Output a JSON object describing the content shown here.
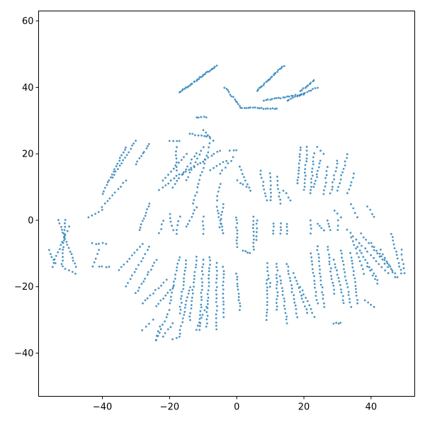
{
  "chart_data": {
    "type": "scatter",
    "title": "",
    "xlabel": "",
    "ylabel": "",
    "xlim": [
      -59,
      53
    ],
    "ylim": [
      -53,
      63
    ],
    "xticks": [
      -40,
      -20,
      0,
      20,
      40
    ],
    "yticks": [
      -40,
      -20,
      0,
      20,
      40,
      60
    ],
    "grid": false,
    "legend": "none",
    "marker_color": "#2b83ba",
    "segments": [
      {
        "from": [
          -17,
          38.5
        ],
        "to": [
          -6,
          46.5
        ],
        "n": 30
      },
      {
        "from": [
          6,
          39
        ],
        "to": [
          14,
          46.5
        ],
        "n": 22
      },
      {
        "from": [
          -3.5,
          40
        ],
        "to": [
          1,
          34.5
        ],
        "n": 12
      },
      {
        "from": [
          1,
          34
        ],
        "to": [
          12,
          33.5
        ],
        "n": 18
      },
      {
        "from": [
          8,
          36
        ],
        "to": [
          20,
          38
        ],
        "n": 20
      },
      {
        "from": [
          15,
          36
        ],
        "to": [
          24,
          40
        ],
        "n": 16
      },
      {
        "from": [
          19,
          39
        ],
        "to": [
          23,
          42
        ],
        "n": 10
      },
      {
        "from": [
          -12,
          31
        ],
        "to": [
          -9,
          31
        ],
        "n": 5
      },
      {
        "from": [
          -33,
          22
        ],
        "to": [
          -40,
          8
        ],
        "n": 18
      },
      {
        "from": [
          -30,
          24
        ],
        "to": [
          -37,
          13
        ],
        "n": 14
      },
      {
        "from": [
          -26,
          23
        ],
        "to": [
          -30,
          17
        ],
        "n": 9
      },
      {
        "from": [
          -33,
          12
        ],
        "to": [
          -40,
          4
        ],
        "n": 10
      },
      {
        "from": [
          -44,
          1
        ],
        "to": [
          -40,
          3
        ],
        "n": 5
      },
      {
        "from": [
          -26,
          5
        ],
        "to": [
          -29,
          -3
        ],
        "n": 10
      },
      {
        "from": [
          -53,
          0
        ],
        "to": [
          -48,
          -14
        ],
        "n": 16
      },
      {
        "from": [
          -51,
          0
        ],
        "to": [
          -52,
          -13
        ],
        "n": 14
      },
      {
        "from": [
          -50,
          -2
        ],
        "to": [
          -55,
          -14
        ],
        "n": 12
      },
      {
        "from": [
          -56,
          -9
        ],
        "to": [
          -54,
          -13
        ],
        "n": 5
      },
      {
        "from": [
          -52,
          -14
        ],
        "to": [
          -48,
          -16
        ],
        "n": 5
      },
      {
        "from": [
          -43,
          -7
        ],
        "to": [
          -39,
          -7
        ],
        "n": 5
      },
      {
        "from": [
          -41,
          -9
        ],
        "to": [
          -43,
          -14
        ],
        "n": 5
      },
      {
        "from": [
          -41,
          -14
        ],
        "to": [
          -38,
          -14
        ],
        "n": 4
      },
      {
        "from": [
          -28,
          -7
        ],
        "to": [
          -35,
          -15
        ],
        "n": 10
      },
      {
        "from": [
          -26,
          -8
        ],
        "to": [
          -33,
          -20
        ],
        "n": 12
      },
      {
        "from": [
          -24,
          -12
        ],
        "to": [
          -30,
          -22
        ],
        "n": 12
      },
      {
        "from": [
          -21,
          -18
        ],
        "to": [
          -28,
          -25
        ],
        "n": 10
      },
      {
        "from": [
          -19,
          -20
        ],
        "to": [
          -24,
          -26
        ],
        "n": 8
      },
      {
        "from": [
          -17,
          24
        ],
        "to": [
          -20,
          24
        ],
        "n": 4
      },
      {
        "from": [
          -14,
          26
        ],
        "to": [
          -8,
          25
        ],
        "n": 8
      },
      {
        "from": [
          -10,
          27
        ],
        "to": [
          -7,
          24
        ],
        "n": 5
      },
      {
        "from": [
          -18,
          22
        ],
        "to": [
          -18,
          15
        ],
        "n": 7
      },
      {
        "from": [
          -15,
          20
        ],
        "to": [
          -22,
          12
        ],
        "n": 10
      },
      {
        "from": [
          -12,
          20
        ],
        "to": [
          -19,
          10
        ],
        "n": 12
      },
      {
        "from": [
          -10,
          22
        ],
        "to": [
          -15,
          12
        ],
        "n": 10
      },
      {
        "from": [
          -8,
          23
        ],
        "to": [
          -13,
          5
        ],
        "n": 16
      },
      {
        "from": [
          -5,
          21
        ],
        "to": [
          -16,
          14
        ],
        "n": 14
      },
      {
        "from": [
          -2,
          21
        ],
        "to": [
          0,
          21
        ],
        "n": 3
      },
      {
        "from": [
          -3,
          18
        ],
        "to": [
          -8,
          15
        ],
        "n": 6
      },
      {
        "from": [
          -1,
          19
        ],
        "to": [
          -5,
          14
        ],
        "n": 6
      },
      {
        "from": [
          1,
          16
        ],
        "to": [
          4,
          9
        ],
        "n": 8
      },
      {
        "from": [
          -5,
          11
        ],
        "to": [
          -6,
          6
        ],
        "n": 5
      },
      {
        "from": [
          0,
          12
        ],
        "to": [
          3,
          10
        ],
        "n": 4
      },
      {
        "from": [
          -17,
          14
        ],
        "to": [
          -23,
          9
        ],
        "n": 8
      },
      {
        "from": [
          -12,
          4
        ],
        "to": [
          -15,
          -2
        ],
        "n": 7
      },
      {
        "from": [
          -17,
          1
        ],
        "to": [
          -18,
          -4
        ],
        "n": 5
      },
      {
        "from": [
          -20,
          2
        ],
        "to": [
          -19,
          -3
        ],
        "n": 5
      },
      {
        "from": [
          -22,
          0
        ],
        "to": [
          -23,
          -4
        ],
        "n": 4
      },
      {
        "from": [
          -10,
          1
        ],
        "to": [
          -10,
          -4
        ],
        "n": 5
      },
      {
        "from": [
          -6,
          4
        ],
        "to": [
          -4,
          -4
        ],
        "n": 9
      },
      {
        "from": [
          -4,
          5
        ],
        "to": [
          -5,
          -2
        ],
        "n": 7
      },
      {
        "from": [
          7,
          15
        ],
        "to": [
          9,
          6
        ],
        "n": 9
      },
      {
        "from": [
          10,
          14
        ],
        "to": [
          10,
          6
        ],
        "n": 8
      },
      {
        "from": [
          12,
          13
        ],
        "to": [
          13,
          5
        ],
        "n": 8
      },
      {
        "from": [
          14,
          9
        ],
        "to": [
          16,
          6
        ],
        "n": 4
      },
      {
        "from": [
          19,
          22
        ],
        "to": [
          18,
          11
        ],
        "n": 12
      },
      {
        "from": [
          21,
          22
        ],
        "to": [
          20,
          9
        ],
        "n": 13
      },
      {
        "from": [
          23,
          20
        ],
        "to": [
          22,
          8
        ],
        "n": 12
      },
      {
        "from": [
          25,
          18
        ],
        "to": [
          23,
          10
        ],
        "n": 9
      },
      {
        "from": [
          27,
          16
        ],
        "to": [
          26,
          8
        ],
        "n": 8
      },
      {
        "from": [
          30,
          18
        ],
        "to": [
          28,
          8
        ],
        "n": 10
      },
      {
        "from": [
          33,
          20
        ],
        "to": [
          30,
          9
        ],
        "n": 11
      },
      {
        "from": [
          35,
          14
        ],
        "to": [
          33,
          8
        ],
        "n": 6
      },
      {
        "from": [
          24,
          22
        ],
        "to": [
          26,
          20
        ],
        "n": 3
      },
      {
        "from": [
          0,
          1
        ],
        "to": [
          0,
          -8
        ],
        "n": 10
      },
      {
        "from": [
          2,
          -9
        ],
        "to": [
          4,
          -10
        ],
        "n": 4
      },
      {
        "from": [
          5,
          1
        ],
        "to": [
          5,
          -9
        ],
        "n": 10
      },
      {
        "from": [
          6,
          0
        ],
        "to": [
          6,
          -6
        ],
        "n": 6
      },
      {
        "from": [
          11,
          -1
        ],
        "to": [
          11,
          -4
        ],
        "n": 4
      },
      {
        "from": [
          13,
          -1
        ],
        "to": [
          13,
          -4
        ],
        "n": 4
      },
      {
        "from": [
          15,
          -1
        ],
        "to": [
          15,
          -4
        ],
        "n": 4
      },
      {
        "from": [
          22,
          0
        ],
        "to": [
          22,
          -4
        ],
        "n": 4
      },
      {
        "from": [
          24,
          -1
        ],
        "to": [
          26,
          -3
        ],
        "n": 4
      },
      {
        "from": [
          27,
          0
        ],
        "to": [
          28,
          -3
        ],
        "n": 4
      },
      {
        "from": [
          30,
          0
        ],
        "to": [
          30,
          -3
        ],
        "n": 3
      },
      {
        "from": [
          29,
          3
        ],
        "to": [
          31,
          1
        ],
        "n": 3
      },
      {
        "from": [
          34,
          5
        ],
        "to": [
          36,
          1
        ],
        "n": 4
      },
      {
        "from": [
          39,
          4
        ],
        "to": [
          41,
          1
        ],
        "n": 4
      },
      {
        "from": [
          -17,
          -11
        ],
        "to": [
          -20,
          -25
        ],
        "n": 14
      },
      {
        "from": [
          -15,
          -12
        ],
        "to": [
          -17,
          -28
        ],
        "n": 16
      },
      {
        "from": [
          -12,
          -11
        ],
        "to": [
          -14,
          -30
        ],
        "n": 18
      },
      {
        "from": [
          -10,
          -12
        ],
        "to": [
          -11,
          -33
        ],
        "n": 20
      },
      {
        "from": [
          -8,
          -11
        ],
        "to": [
          -9,
          -32
        ],
        "n": 20
      },
      {
        "from": [
          -6,
          -13
        ],
        "to": [
          -6,
          -33
        ],
        "n": 18
      },
      {
        "from": [
          -4,
          -14
        ],
        "to": [
          -4,
          -29
        ],
        "n": 14
      },
      {
        "from": [
          0,
          -16
        ],
        "to": [
          1,
          -27
        ],
        "n": 12
      },
      {
        "from": [
          -14,
          -20
        ],
        "to": [
          -17,
          -34
        ],
        "n": 14
      },
      {
        "from": [
          -20,
          -27
        ],
        "to": [
          -24,
          -36
        ],
        "n": 9
      },
      {
        "from": [
          -19,
          -31
        ],
        "to": [
          -22,
          -35
        ],
        "n": 5
      },
      {
        "from": [
          -17,
          -35
        ],
        "to": [
          -19,
          -36
        ],
        "n": 3
      },
      {
        "from": [
          -23,
          -32
        ],
        "to": [
          -24,
          -36
        ],
        "n": 4
      },
      {
        "from": [
          -25,
          -30
        ],
        "to": [
          -28,
          -33
        ],
        "n": 4
      },
      {
        "from": [
          -9,
          -26
        ],
        "to": [
          -12,
          -33
        ],
        "n": 7
      },
      {
        "from": [
          9,
          -18
        ],
        "to": [
          9,
          -30
        ],
        "n": 12
      },
      {
        "from": [
          9,
          -13
        ],
        "to": [
          10,
          -20
        ],
        "n": 7
      },
      {
        "from": [
          12,
          -13
        ],
        "to": [
          12,
          -27
        ],
        "n": 14
      },
      {
        "from": [
          13,
          -17
        ],
        "to": [
          15,
          -31
        ],
        "n": 14
      },
      {
        "from": [
          15,
          -13
        ],
        "to": [
          18,
          -29
        ],
        "n": 16
      },
      {
        "from": [
          17,
          -16
        ],
        "to": [
          21,
          -28
        ],
        "n": 12
      },
      {
        "from": [
          19,
          -20
        ],
        "to": [
          23,
          -29
        ],
        "n": 9
      },
      {
        "from": [
          22,
          -10
        ],
        "to": [
          24,
          -25
        ],
        "n": 14
      },
      {
        "from": [
          24,
          -8
        ],
        "to": [
          26,
          -26
        ],
        "n": 17
      },
      {
        "from": [
          27,
          -8
        ],
        "to": [
          29,
          -22
        ],
        "n": 14
      },
      {
        "from": [
          29,
          -12
        ],
        "to": [
          32,
          -25
        ],
        "n": 13
      },
      {
        "from": [
          31,
          -9
        ],
        "to": [
          34,
          -26
        ],
        "n": 16
      },
      {
        "from": [
          34,
          -10
        ],
        "to": [
          36,
          -25
        ],
        "n": 15
      },
      {
        "from": [
          33,
          -3
        ],
        "to": [
          45,
          -16
        ],
        "n": 15
      },
      {
        "from": [
          37,
          -4
        ],
        "to": [
          45,
          -14
        ],
        "n": 11
      },
      {
        "from": [
          36,
          -8
        ],
        "to": [
          42,
          -18
        ],
        "n": 11
      },
      {
        "from": [
          34,
          -5
        ],
        "to": [
          38,
          -16
        ],
        "n": 10
      },
      {
        "from": [
          40,
          -7
        ],
        "to": [
          48,
          -17
        ],
        "n": 11
      },
      {
        "from": [
          43,
          -9
        ],
        "to": [
          47,
          -17
        ],
        "n": 8
      },
      {
        "from": [
          39,
          -14
        ],
        "to": [
          42,
          -19
        ],
        "n": 5
      },
      {
        "from": [
          46,
          -4
        ],
        "to": [
          49,
          -16
        ],
        "n": 12
      },
      {
        "from": [
          49,
          -9
        ],
        "to": [
          50,
          -16
        ],
        "n": 6
      },
      {
        "from": [
          38,
          -24
        ],
        "to": [
          41,
          -26
        ],
        "n": 4
      },
      {
        "from": [
          29,
          -31
        ],
        "to": [
          31,
          -31
        ],
        "n": 4
      }
    ]
  }
}
